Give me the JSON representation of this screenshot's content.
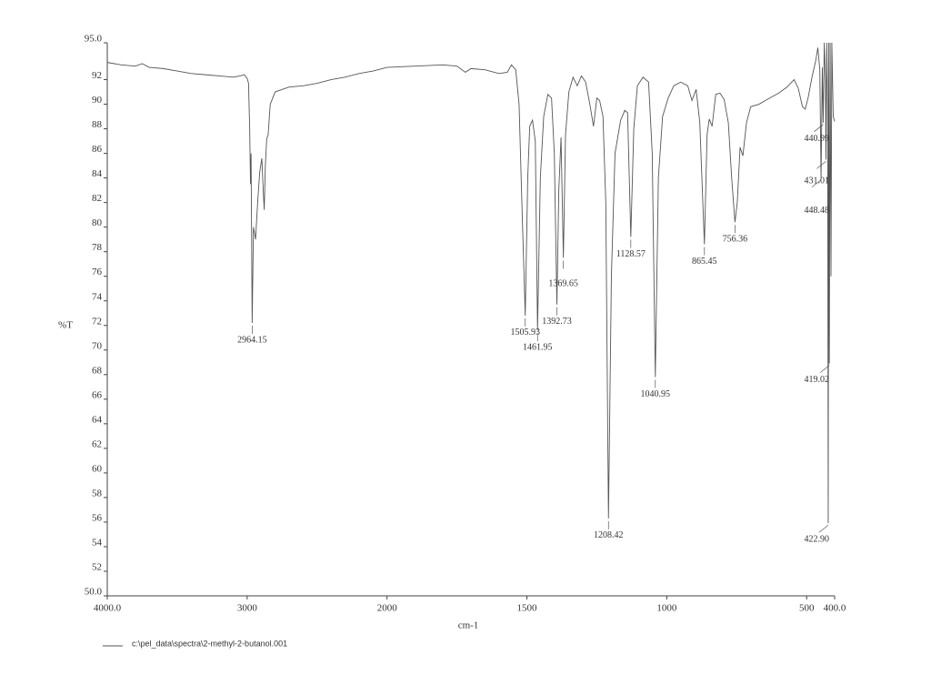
{
  "chart_data": {
    "type": "line",
    "x_label": "cm-1",
    "y_label": "%T",
    "xlim": [
      4000,
      400
    ],
    "ylim": [
      50,
      95
    ],
    "x_scale_break": 2000,
    "xticks": [
      {
        "value": 4000,
        "label": "4000.0"
      },
      3000,
      2000,
      1500,
      1000,
      500,
      {
        "value": 400,
        "label": "400.0"
      }
    ],
    "yticks": [
      {
        "value": 95,
        "label": "95.0"
      },
      92,
      90,
      88,
      86,
      84,
      82,
      80,
      78,
      76,
      74,
      72,
      70,
      68,
      66,
      64,
      62,
      60,
      58,
      56,
      54,
      52,
      {
        "value": 50,
        "label": "50.0"
      }
    ],
    "x": [
      4000,
      3900,
      3800,
      3750,
      3700,
      3600,
      3500,
      3400,
      3300,
      3200,
      3100,
      3050,
      3020,
      3000,
      2990,
      2982,
      2976,
      2972,
      2964.15,
      2955,
      2940,
      2925,
      2910,
      2895,
      2885,
      2878,
      2870,
      2860,
      2850,
      2835,
      2800,
      2700,
      2600,
      2500,
      2400,
      2300,
      2200,
      2100,
      2000,
      1900,
      1800,
      1750,
      1720,
      1700,
      1650,
      1600,
      1570,
      1555,
      1540,
      1528,
      1518,
      1505.93,
      1497,
      1490,
      1480,
      1470,
      1461.95,
      1452,
      1440,
      1425,
      1412,
      1402,
      1392.73,
      1386,
      1378,
      1369.65,
      1362,
      1350,
      1335,
      1320,
      1305,
      1290,
      1275,
      1262,
      1250,
      1240,
      1228,
      1218,
      1208.42,
      1198,
      1185,
      1165,
      1150,
      1140,
      1128.57,
      1118,
      1105,
      1085,
      1065,
      1052,
      1040.95,
      1030,
      1015,
      995,
      975,
      950,
      925,
      910,
      895,
      882,
      865.45,
      856,
      848,
      838,
      825,
      810,
      795,
      780,
      768,
      756.36,
      748,
      738,
      728,
      715,
      700,
      670,
      640,
      600,
      570,
      545,
      530,
      515,
      505,
      495,
      480,
      468,
      460,
      453,
      448.48,
      444,
      440.99,
      437,
      433,
      431.01,
      428,
      425,
      422.9,
      421,
      419.02,
      416,
      413,
      410,
      405,
      400
    ],
    "series": [
      {
        "name": "c:\\pel_data\\spectra\\2-methyl-2-butanol.001",
        "color": "#555555",
        "values": [
          93.4,
          93.2,
          93.1,
          93.3,
          93.0,
          92.9,
          92.7,
          92.5,
          92.4,
          92.3,
          92.2,
          92.3,
          92.4,
          92.1,
          91.7,
          88,
          83.5,
          86,
          72.2,
          80,
          79,
          82,
          84.5,
          85.6,
          83,
          81.4,
          85,
          87.2,
          87.5,
          90,
          91,
          91.4,
          91.5,
          91.7,
          92,
          92.2,
          92.5,
          92.7,
          93,
          93.1,
          93.2,
          93.1,
          92.6,
          92.9,
          92.8,
          92.5,
          92.6,
          93.2,
          92.8,
          90,
          82,
          72.8,
          84,
          88.2,
          88.7,
          87,
          71.6,
          84,
          89,
          90.8,
          90.5,
          86,
          73.7,
          83,
          87.3,
          77.5,
          87.5,
          91,
          92.2,
          91.5,
          92.3,
          91.8,
          90,
          88.2,
          90.5,
          90.3,
          89,
          82,
          56.3,
          76,
          86,
          88.7,
          89.5,
          89.3,
          79.2,
          88,
          91.5,
          92.2,
          91.8,
          86,
          67.8,
          84,
          89,
          90.5,
          91.5,
          91.8,
          91.5,
          90.3,
          91.2,
          88.5,
          78.6,
          87.5,
          88.8,
          88.2,
          90.8,
          90.9,
          90.4,
          88.5,
          84,
          80.4,
          82,
          86.5,
          85.8,
          88.5,
          89.8,
          90,
          90.4,
          90.9,
          91.4,
          92,
          91.3,
          89.8,
          89.6,
          90.5,
          92.3,
          93.5,
          94.6,
          92.8,
          84,
          93,
          88.5,
          95,
          92,
          85.5,
          95,
          90,
          55.9,
          95,
          68.9,
          95,
          76,
          95,
          89,
          88.6
        ]
      }
    ],
    "peaks": [
      {
        "x": 2964.15,
        "y": 72.2
      },
      {
        "x": 1505.93,
        "y": 72.8
      },
      {
        "x": 1461.95,
        "y": 71.6
      },
      {
        "x": 1392.73,
        "y": 73.7
      },
      {
        "x": 1369.65,
        "y": 77.5
      },
      {
        "x": 1208.42,
        "y": 56.3
      },
      {
        "x": 1128.57,
        "y": 79.2
      },
      {
        "x": 1040.95,
        "y": 67.8
      },
      {
        "x": 865.45,
        "y": 78.6
      },
      {
        "x": 756.36,
        "y": 80.4
      },
      {
        "x": 440.99,
        "y": 88.5
      },
      {
        "x": 431.01,
        "y": 85.5
      },
      {
        "x": 448.48,
        "y": 84
      },
      {
        "x": 419.02,
        "y": 68.9
      },
      {
        "x": 422.9,
        "label": "422.90",
        "y": 55.9
      }
    ]
  }
}
